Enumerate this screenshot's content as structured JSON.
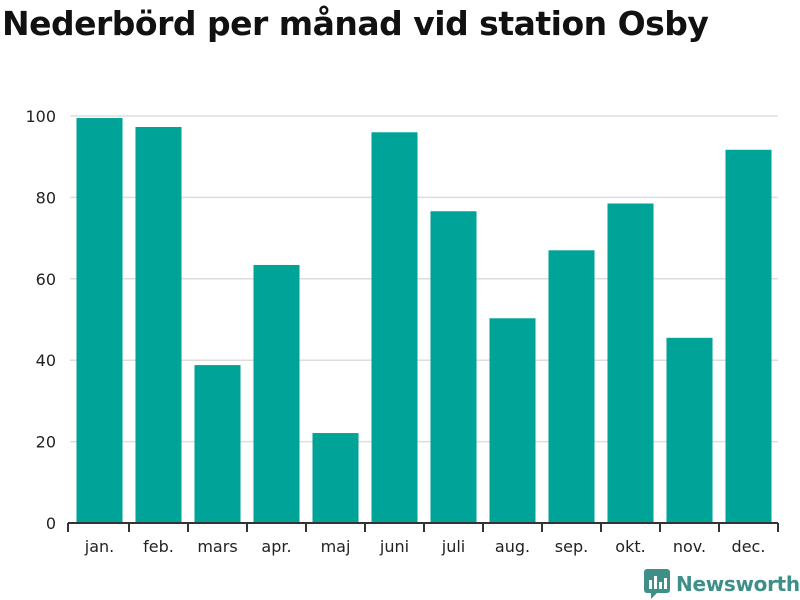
{
  "title": "Nederbörd per månad vid station Osby",
  "brand": {
    "name": "Newsworthy",
    "icon": "newsworthy-logo-icon",
    "color": "#3f8f89"
  },
  "colors": {
    "bar": "#00a398",
    "grid": "#dddddd",
    "axis": "#333333"
  },
  "chart_data": {
    "type": "bar",
    "title": "Nederbörd per månad vid station Osby",
    "xlabel": "",
    "ylabel": "",
    "categories": [
      "jan.",
      "feb.",
      "mars",
      "apr.",
      "maj",
      "juni",
      "juli",
      "aug.",
      "sep.",
      "okt.",
      "nov.",
      "dec."
    ],
    "values": [
      99.5,
      97.3,
      38.8,
      63.4,
      22.1,
      96.0,
      76.6,
      50.3,
      67.0,
      78.5,
      45.5,
      91.7
    ],
    "ylim": [
      0,
      100
    ],
    "yticks": [
      "0",
      "20",
      "40",
      "60",
      "80",
      "100"
    ],
    "grid": true,
    "legend": "none"
  }
}
